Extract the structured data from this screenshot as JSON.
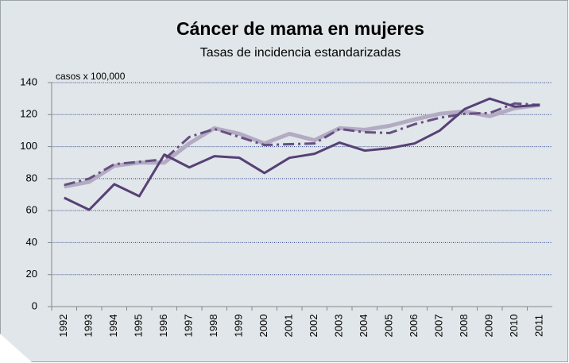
{
  "chart_data": {
    "type": "line",
    "title": "Cáncer de mama en mujeres",
    "subtitle": "Tasas de incidencia estandarizadas",
    "y_label": "casos x 100,000",
    "categories": [
      "1992",
      "1993",
      "1994",
      "1995",
      "1996",
      "1997",
      "1998",
      "1999",
      "2000",
      "2001",
      "2002",
      "2003",
      "2004",
      "2005",
      "2006",
      "2007",
      "2008",
      "2009",
      "2010",
      "2011"
    ],
    "series": [
      {
        "color": "#b3abc3",
        "dash": "solid",
        "line_width": 5,
        "values": [
          75,
          78,
          88,
          90,
          90,
          102,
          111.5,
          108,
          102,
          108,
          104,
          111.5,
          110.5,
          113,
          117,
          120.5,
          122,
          119,
          124,
          126
        ]
      },
      {
        "color": "#66507f",
        "dash": "dashdot",
        "line_width": 3,
        "values": [
          76,
          80,
          89,
          90.5,
          92,
          106,
          111,
          106,
          101,
          101.5,
          102,
          111,
          109,
          108.5,
          114,
          118,
          120.5,
          121,
          127,
          126
        ]
      },
      {
        "color": "#574075",
        "dash": "solid",
        "line_width": 3,
        "values": [
          68,
          60.5,
          76.5,
          69,
          95,
          87,
          94,
          93,
          83.5,
          93,
          95.5,
          102.5,
          97.5,
          99,
          102,
          110,
          123.5,
          130,
          125,
          126
        ]
      }
    ],
    "ylim": [
      0,
      140
    ],
    "yticks": [
      0,
      20,
      40,
      60,
      80,
      100,
      120,
      140
    ],
    "grid": true
  }
}
